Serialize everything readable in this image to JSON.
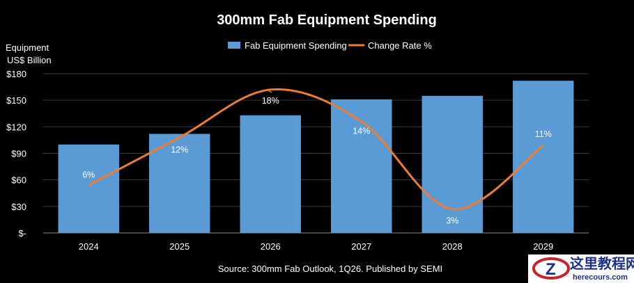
{
  "chart_data": {
    "type": "bar",
    "title": "300mm Fab Equipment Spending",
    "categories": [
      "2024",
      "2025",
      "2026",
      "2027",
      "2028",
      "2029"
    ],
    "series": [
      {
        "name": "Fab Equipment Spending",
        "kind": "bar",
        "color": "#5b9bd5",
        "values": [
          100,
          112,
          133,
          151,
          155,
          172
        ]
      },
      {
        "name": "Change Rate %",
        "kind": "line",
        "color": "#ed7d31",
        "values": [
          6,
          12,
          18,
          14,
          3,
          11
        ]
      }
    ],
    "data_labels": [
      "6%",
      "12%",
      "18%",
      "14%",
      "3%",
      "11%"
    ],
    "ylabel_line1": "Equipment",
    "ylabel_line2": "US$ Billion",
    "ylim": [
      0,
      180
    ],
    "yticks": [
      0,
      30,
      60,
      90,
      120,
      150,
      180
    ],
    "ytick_labels": [
      "$-",
      "$30",
      "$60",
      "$90",
      "$120",
      "$150",
      "$180"
    ],
    "line_axis": {
      "min": 0,
      "max": 20
    },
    "grid": true,
    "legend": "top-center",
    "source": "Source: 300mm Fab Outlook, 1Q26. Published by SEMI"
  },
  "watermark": {
    "text_cn": "这里教程网",
    "text_en": "herecours.com",
    "letter": "Z"
  }
}
